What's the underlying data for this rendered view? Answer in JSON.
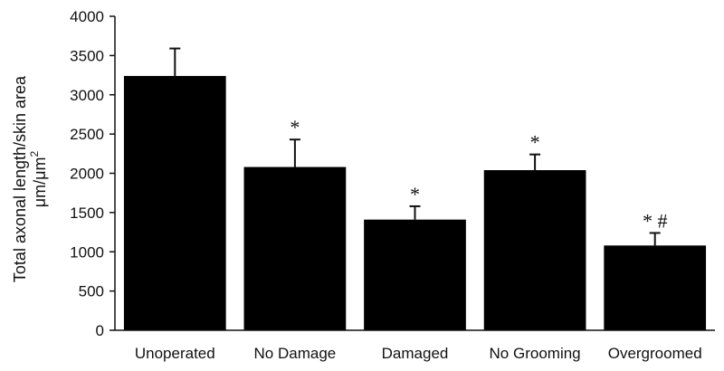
{
  "chart_data": {
    "type": "bar",
    "title": "",
    "ylabel": "Total axonal length/skin area",
    "ylabel_unit": "μm/μm",
    "ylabel_unit_sup": "2",
    "xlabel": "",
    "ylim": [
      0,
      4000
    ],
    "yticks": [
      0,
      500,
      1000,
      1500,
      2000,
      2500,
      3000,
      3500,
      4000
    ],
    "categories": [
      "Unoperated",
      "No Damage",
      "Damaged",
      "No Grooming",
      "Overgroomed"
    ],
    "values": [
      3240,
      2080,
      1410,
      2040,
      1080
    ],
    "error_upper": [
      350,
      350,
      170,
      200,
      160
    ],
    "significance": [
      "",
      "*",
      "*",
      "*",
      "* #"
    ],
    "bar_color": "#000000",
    "grid": false,
    "legend": "none"
  }
}
